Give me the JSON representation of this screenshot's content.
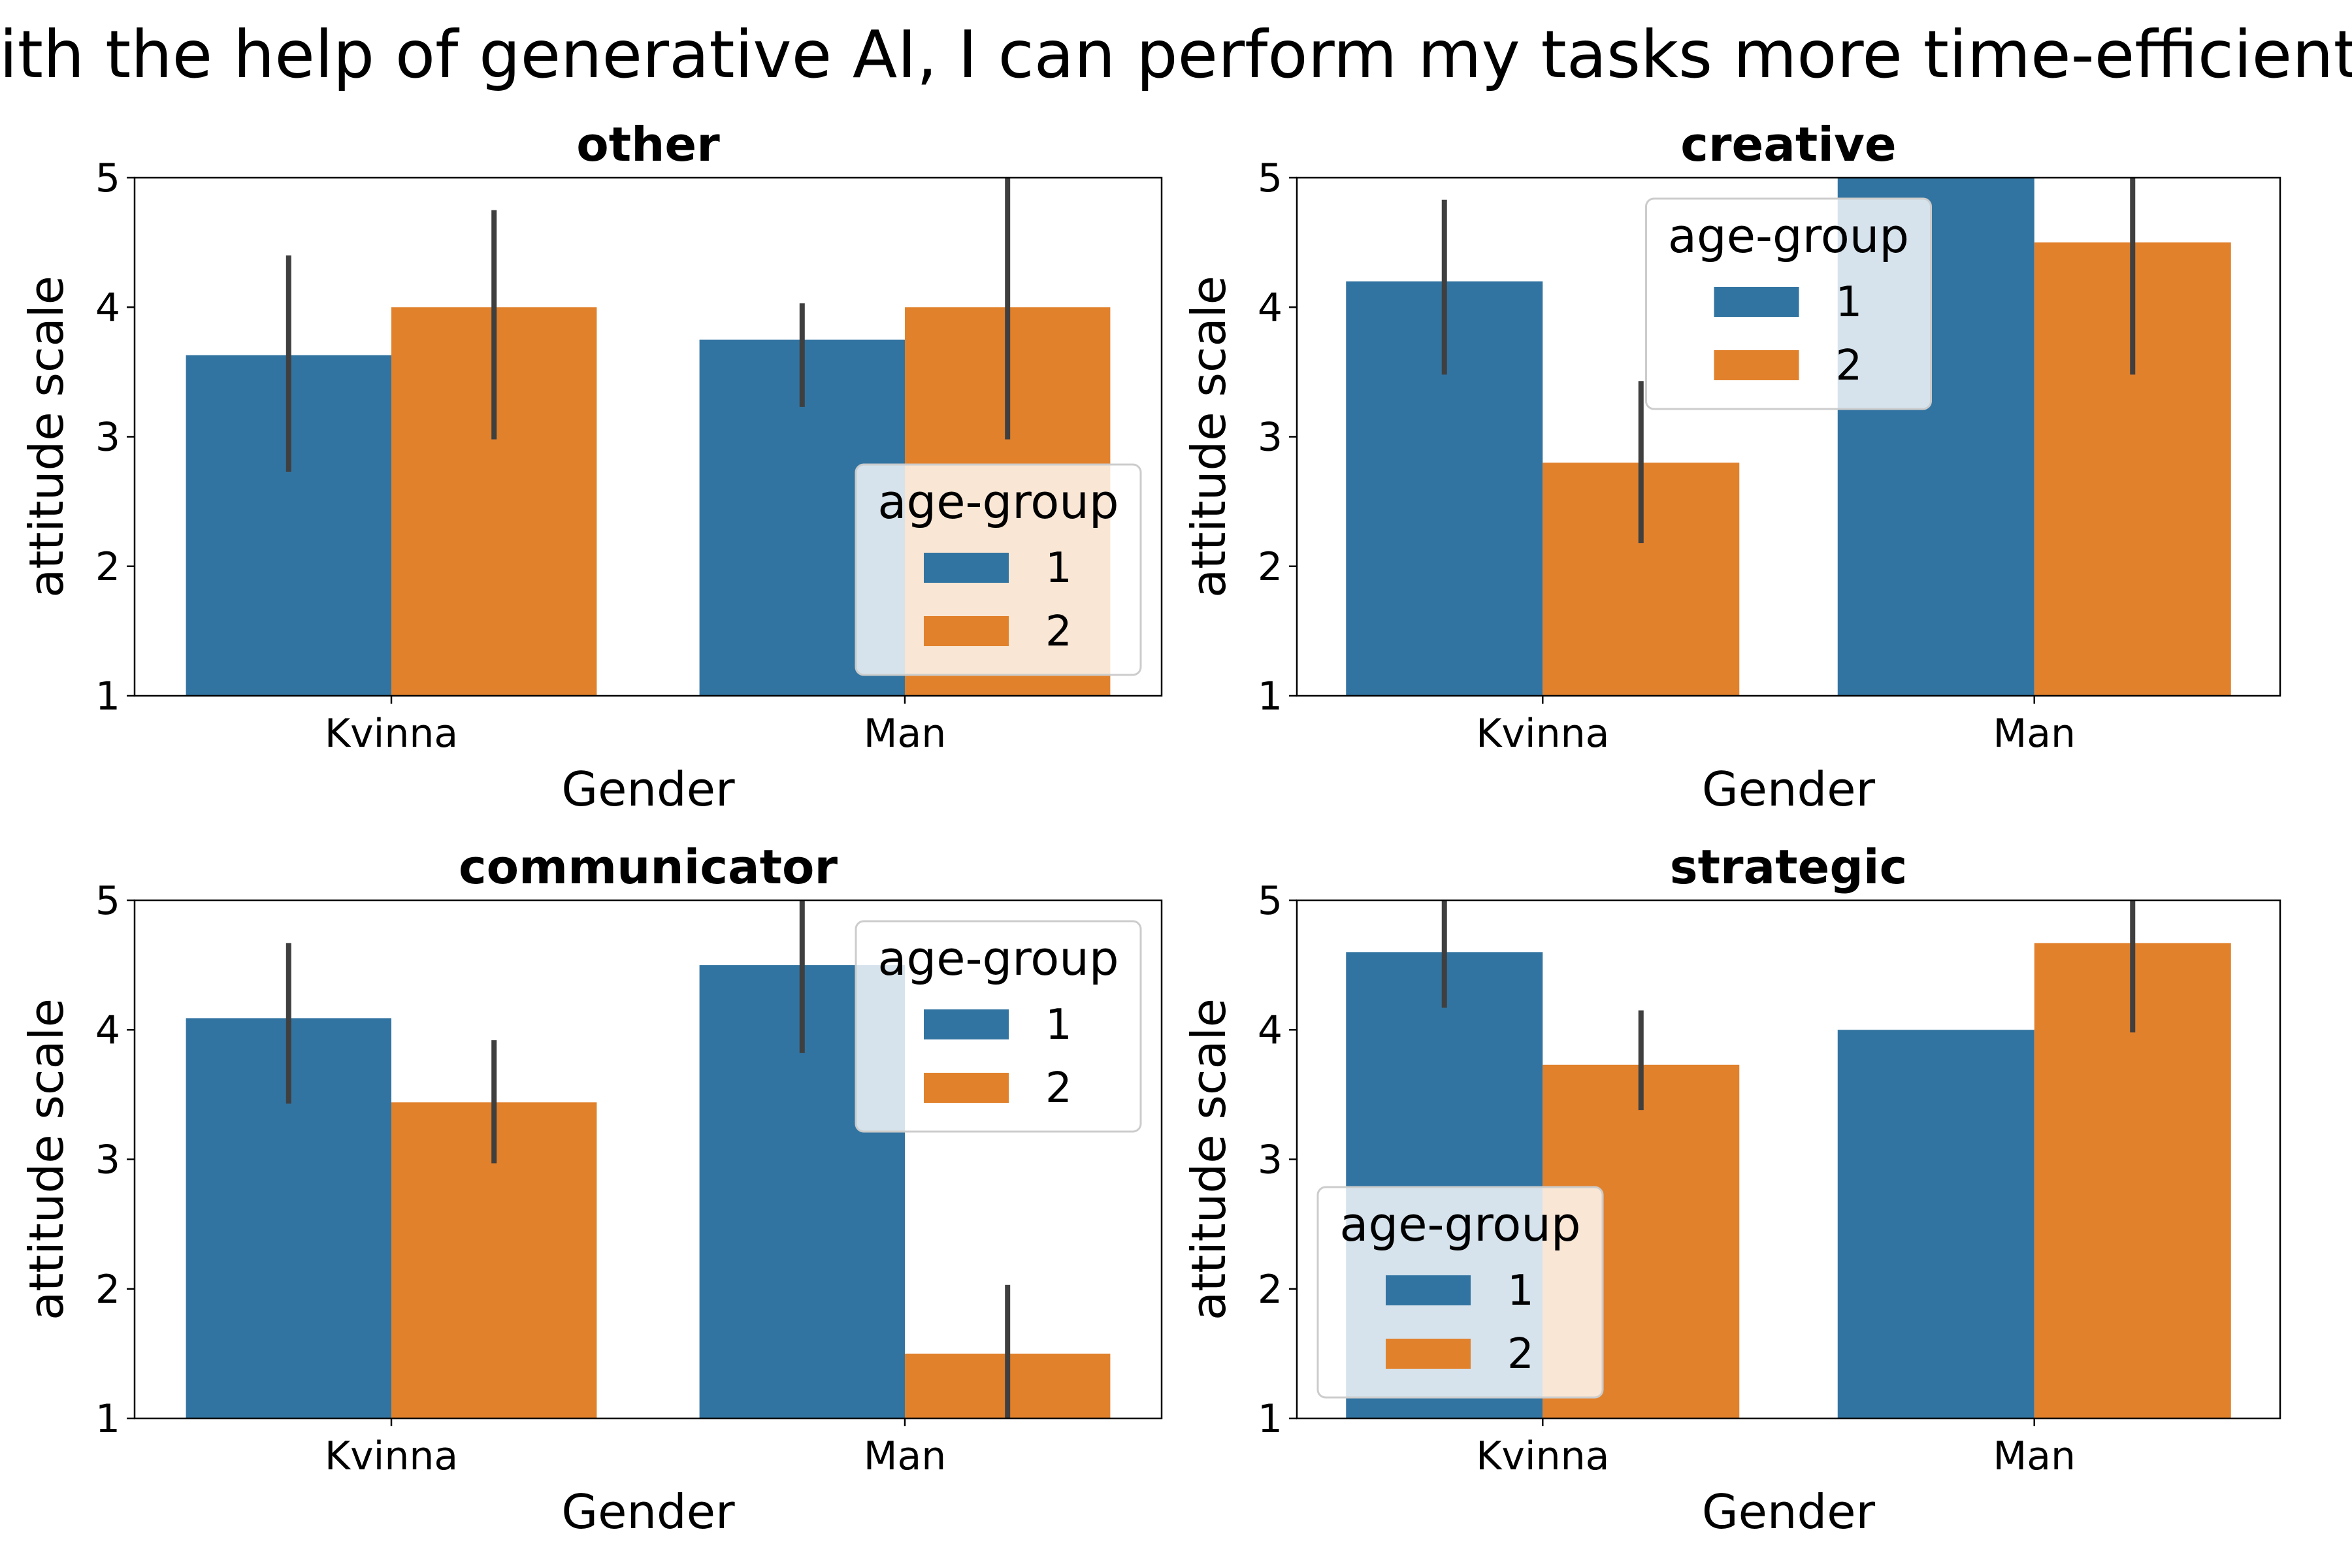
{
  "figure": {
    "title": "With the help of generative AI, I can perform my tasks more time-efficiently"
  },
  "colors": {
    "age_group_1": "#3274a1",
    "age_group_2": "#e1812c",
    "error_bar": "#3f3f3f"
  },
  "chart_data": [
    {
      "type": "bar",
      "title": "other",
      "xlabel": "Gender",
      "ylabel": "attitude scale",
      "categories": [
        "Kvinna",
        "Man"
      ],
      "ylim": [
        1,
        5
      ],
      "yticks": [
        1,
        2,
        3,
        4,
        5
      ],
      "legend": {
        "title": "age-group",
        "placement": "lower-right"
      },
      "series": [
        {
          "name": "1",
          "values": [
            3.63,
            3.75
          ],
          "ci": [
            [
              2.73,
              4.4
            ],
            [
              3.23,
              4.03
            ]
          ]
        },
        {
          "name": "2",
          "values": [
            4.0,
            4.0
          ],
          "ci": [
            [
              2.98,
              4.75
            ],
            [
              2.98,
              5.0
            ]
          ]
        }
      ]
    },
    {
      "type": "bar",
      "title": "creative",
      "xlabel": "Gender",
      "ylabel": "attitude scale",
      "categories": [
        "Kvinna",
        "Man"
      ],
      "ylim": [
        1,
        5
      ],
      "yticks": [
        1,
        2,
        3,
        4,
        5
      ],
      "legend": {
        "title": "age-group",
        "placement": "upper-center"
      },
      "series": [
        {
          "name": "1",
          "values": [
            4.2,
            5.0
          ],
          "ci": [
            [
              3.48,
              4.83
            ],
            [
              5.0,
              5.0
            ]
          ]
        },
        {
          "name": "2",
          "values": [
            2.8,
            4.5
          ],
          "ci": [
            [
              2.18,
              3.43
            ],
            [
              3.48,
              5.0
            ]
          ]
        }
      ]
    },
    {
      "type": "bar",
      "title": "communicator",
      "xlabel": "Gender",
      "ylabel": "attitude scale",
      "categories": [
        "Kvinna",
        "Man"
      ],
      "ylim": [
        1,
        5
      ],
      "yticks": [
        1,
        2,
        3,
        4,
        5
      ],
      "legend": {
        "title": "age-group",
        "placement": "upper-right"
      },
      "series": [
        {
          "name": "1",
          "values": [
            4.09,
            4.5
          ],
          "ci": [
            [
              3.43,
              4.67
            ],
            [
              3.82,
              5.0
            ]
          ]
        },
        {
          "name": "2",
          "values": [
            3.44,
            1.5
          ],
          "ci": [
            [
              2.97,
              3.92
            ],
            [
              1.0,
              2.03
            ]
          ]
        }
      ]
    },
    {
      "type": "bar",
      "title": "strategic",
      "xlabel": "Gender",
      "ylabel": "attitude scale",
      "categories": [
        "Kvinna",
        "Man"
      ],
      "ylim": [
        1,
        5
      ],
      "yticks": [
        1,
        2,
        3,
        4,
        5
      ],
      "legend": {
        "title": "age-group",
        "placement": "lower-left"
      },
      "series": [
        {
          "name": "1",
          "values": [
            4.6,
            4.0
          ],
          "ci": [
            [
              4.17,
              5.0
            ],
            [
              4.0,
              4.0
            ]
          ]
        },
        {
          "name": "2",
          "values": [
            3.73,
            4.67
          ],
          "ci": [
            [
              3.38,
              4.15
            ],
            [
              3.98,
              5.0
            ]
          ]
        }
      ]
    }
  ]
}
